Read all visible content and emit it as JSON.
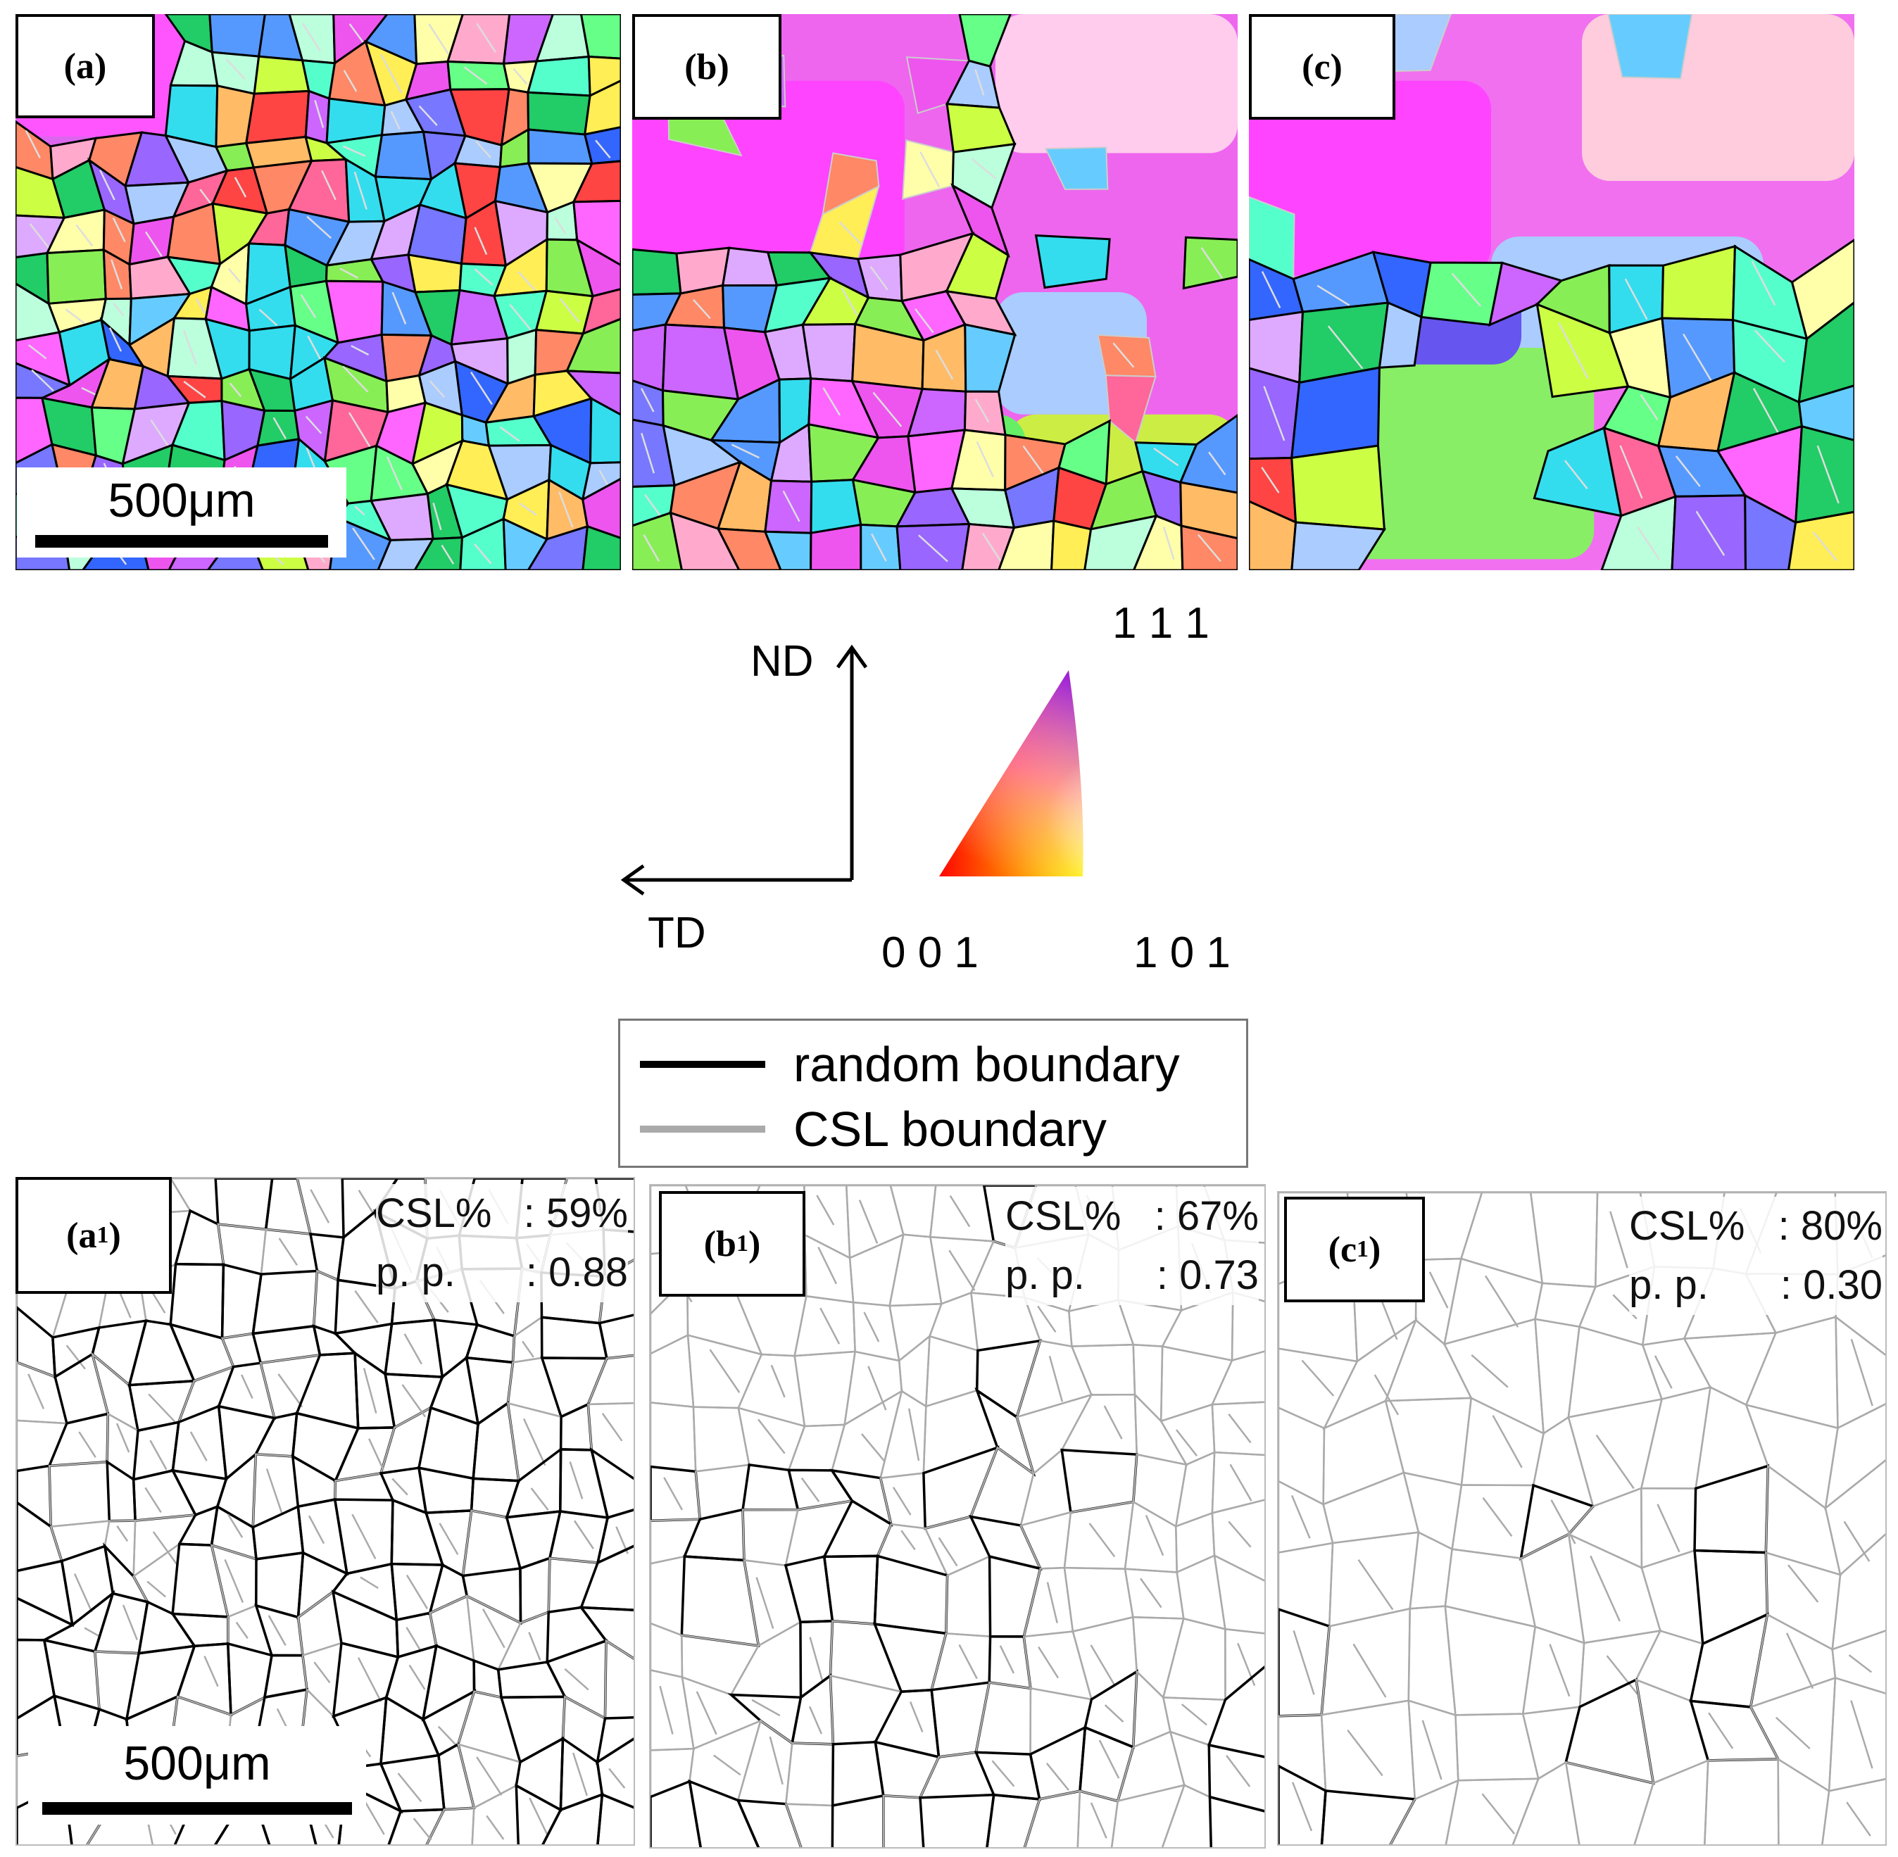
{
  "colors": {
    "random_boundary": "#000000",
    "csl_boundary": "#aaaaaa",
    "ipf_001": "#ff0000",
    "ipf_101": "#00ff00",
    "ipf_111": "#0000ff"
  },
  "ebsd_maps": [
    {
      "label": "(a)",
      "scale_label": "500μm"
    },
    {
      "label": "(b)"
    },
    {
      "label": "(c)"
    }
  ],
  "boundary_maps": [
    {
      "label_main": "(a",
      "label_sub": "1",
      "label_close": ")",
      "csl_key": "CSL%",
      "csl_value": ": 59%",
      "pp_key": "p. p.",
      "pp_value": ": 0.88",
      "scale_label": "500μm"
    },
    {
      "label_main": "(b",
      "label_sub": "1",
      "label_close": ")",
      "csl_key": "CSL%",
      "csl_value": ": 67%",
      "pp_key": "p. p.",
      "pp_value": ": 0.73"
    },
    {
      "label_main": "(c",
      "label_sub": "1",
      "label_close": ")",
      "csl_key": "CSL%",
      "csl_value": ": 80%",
      "pp_key": "p. p.",
      "pp_value": ": 0.30"
    }
  ],
  "orientation": {
    "nd_label": "ND",
    "td_label": "TD",
    "ipf_111": "1 1 1",
    "ipf_001": "0 0 1",
    "ipf_101": "1 0 1"
  },
  "legend": {
    "random_label": "random boundary",
    "csl_label": "CSL boundary"
  }
}
